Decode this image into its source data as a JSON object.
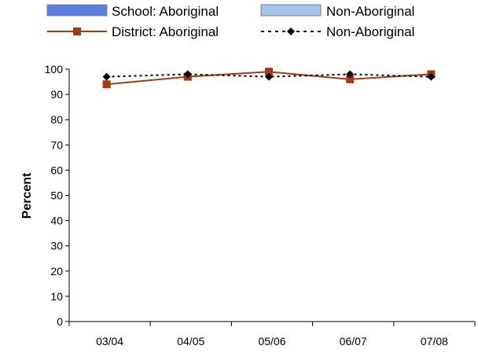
{
  "chart_data": {
    "type": "line",
    "title": "",
    "xlabel": "",
    "ylabel": "Percent",
    "ylim": [
      0,
      100
    ],
    "yticks": [
      0,
      10,
      20,
      30,
      40,
      50,
      60,
      70,
      80,
      90,
      100
    ],
    "categories": [
      "03/04",
      "04/05",
      "05/06",
      "06/07",
      "07/08"
    ],
    "legend_position": "top",
    "legend": [
      {
        "label": "School: Aboriginal",
        "kind": "bar",
        "color": "#5b7ee5"
      },
      {
        "label": "Non-Aboriginal",
        "kind": "bar",
        "color": "#a4c2ec"
      },
      {
        "label": "District: Aboriginal",
        "kind": "line",
        "color": "#a23a12",
        "marker": "square"
      },
      {
        "label": "Non-Aboriginal",
        "kind": "dashed-line",
        "color": "#000000",
        "marker": "diamond"
      }
    ],
    "series": [
      {
        "name": "District: Aboriginal",
        "values": [
          94,
          97,
          99,
          96,
          98
        ],
        "color": "#a23a12",
        "marker": "square",
        "style": "solid"
      },
      {
        "name": "Non-Aboriginal",
        "values": [
          97,
          98,
          97,
          98,
          97
        ],
        "color": "#000000",
        "marker": "diamond",
        "style": "dotted"
      }
    ]
  }
}
